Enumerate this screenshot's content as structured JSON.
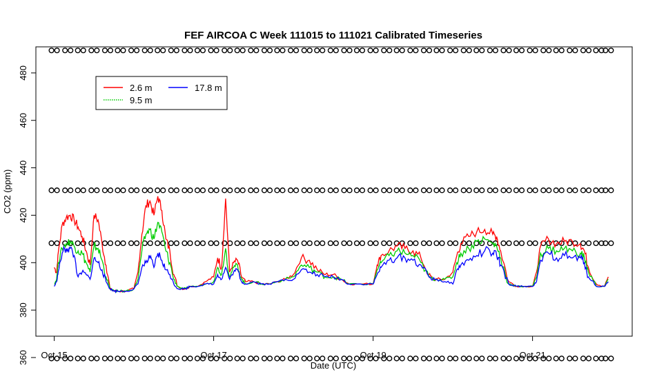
{
  "chart_data": {
    "type": "line",
    "title": "FEF AIRCOA C  Week 111015 to 111021  Calibrated Timeseries",
    "xlabel": "Date (UTC)",
    "ylabel": "CO2 (ppm)",
    "x_ticks": [
      "Oct 15",
      "Oct 17",
      "Oct 19",
      "Oct 21"
    ],
    "x_tick_days": [
      15,
      17,
      19,
      21
    ],
    "y_ticks": [
      360,
      380,
      400,
      420,
      440,
      460,
      480
    ],
    "xlim": [
      14.77,
      22.25
    ],
    "ylim": [
      369,
      491
    ],
    "grid": false,
    "legend_position": "top-left",
    "series": [
      {
        "name": "2.6 m",
        "color": "#ff0000",
        "x": [
          15.0,
          15.03,
          15.05,
          15.1,
          15.15,
          15.2,
          15.25,
          15.3,
          15.35,
          15.4,
          15.45,
          15.5,
          15.55,
          15.6,
          15.65,
          15.7,
          15.75,
          15.8,
          15.9,
          16.0,
          16.05,
          16.1,
          16.15,
          16.2,
          16.25,
          16.3,
          16.35,
          16.4,
          16.45,
          16.5,
          16.55,
          16.6,
          16.65,
          16.7,
          16.8,
          16.9,
          17.0,
          17.05,
          17.1,
          17.15,
          17.2,
          17.25,
          17.3,
          17.35,
          17.4,
          17.5,
          17.6,
          17.7,
          17.8,
          17.9,
          18.0,
          18.1,
          18.2,
          18.3,
          18.4,
          18.5,
          18.6,
          18.7,
          18.8,
          19.0,
          19.05,
          19.1,
          19.2,
          19.3,
          19.4,
          19.5,
          19.6,
          19.7,
          19.75,
          19.8,
          19.9,
          20.0,
          20.05,
          20.1,
          20.2,
          20.3,
          20.4,
          20.5,
          20.55,
          20.6,
          20.7,
          20.8,
          20.9,
          21.0,
          21.05,
          21.1,
          21.2,
          21.3,
          21.4,
          21.5,
          21.6,
          21.65,
          21.7,
          21.8,
          21.9,
          21.95
        ],
        "y": [
          398,
          396,
          404,
          416,
          419,
          420,
          418,
          415,
          411,
          405,
          399,
          420,
          418,
          408,
          399,
          389,
          388,
          388,
          388,
          389,
          396,
          412,
          424,
          426,
          420,
          428,
          422,
          410,
          405,
          395,
          390,
          389,
          389,
          390,
          390,
          392,
          394,
          402,
          398,
          427,
          396,
          400,
          401,
          394,
          392,
          392,
          391,
          391,
          392,
          393,
          395,
          402,
          401,
          397,
          395,
          395,
          393,
          391,
          391,
          391,
          399,
          403,
          405,
          407,
          406,
          405,
          402,
          395,
          393,
          393,
          393,
          396,
          403,
          408,
          411,
          413,
          414,
          412,
          411,
          405,
          392,
          390,
          390,
          390,
          396,
          407,
          410,
          408,
          409,
          409,
          408,
          405,
          398,
          391,
          390,
          394
        ]
      },
      {
        "name": "9.5 m",
        "color": "#00cc00",
        "x": [
          15.0,
          15.03,
          15.05,
          15.1,
          15.15,
          15.2,
          15.25,
          15.3,
          15.35,
          15.4,
          15.45,
          15.5,
          15.55,
          15.6,
          15.65,
          15.7,
          15.75,
          15.8,
          15.9,
          16.0,
          16.05,
          16.1,
          16.15,
          16.2,
          16.25,
          16.3,
          16.35,
          16.4,
          16.45,
          16.5,
          16.55,
          16.6,
          16.65,
          16.7,
          16.8,
          16.9,
          17.0,
          17.05,
          17.1,
          17.15,
          17.2,
          17.25,
          17.3,
          17.35,
          17.4,
          17.5,
          17.6,
          17.7,
          17.8,
          17.9,
          18.0,
          18.1,
          18.2,
          18.3,
          18.4,
          18.5,
          18.6,
          18.7,
          18.8,
          19.0,
          19.05,
          19.1,
          19.2,
          19.3,
          19.4,
          19.5,
          19.6,
          19.7,
          19.75,
          19.8,
          19.9,
          20.0,
          20.05,
          20.1,
          20.2,
          20.3,
          20.4,
          20.5,
          20.55,
          20.6,
          20.7,
          20.8,
          20.9,
          21.0,
          21.05,
          21.1,
          21.2,
          21.3,
          21.4,
          21.5,
          21.6,
          21.65,
          21.7,
          21.8,
          21.9,
          21.95
        ],
        "y": [
          391,
          393,
          400,
          406,
          408,
          409,
          407,
          405,
          404,
          400,
          396,
          407,
          406,
          401,
          394,
          389,
          388,
          388,
          388,
          389,
          393,
          405,
          412,
          414,
          410,
          417,
          413,
          405,
          400,
          393,
          390,
          389,
          389,
          390,
          390,
          391,
          392,
          398,
          395,
          406,
          394,
          398,
          399,
          393,
          391,
          392,
          391,
          391,
          392,
          393,
          394,
          399,
          398,
          396,
          394,
          394,
          393,
          391,
          391,
          391,
          397,
          400,
          403,
          405,
          404,
          403,
          400,
          394,
          393,
          393,
          393,
          394,
          400,
          404,
          406,
          409,
          410,
          408,
          407,
          402,
          391,
          390,
          390,
          390,
          394,
          404,
          406,
          405,
          406,
          405,
          404,
          402,
          396,
          390,
          390,
          393
        ]
      },
      {
        "name": "17.8 m",
        "color": "#0000ff",
        "x": [
          15.0,
          15.03,
          15.05,
          15.1,
          15.15,
          15.2,
          15.25,
          15.3,
          15.35,
          15.4,
          15.45,
          15.5,
          15.55,
          15.6,
          15.65,
          15.7,
          15.75,
          15.8,
          15.9,
          16.0,
          16.05,
          16.1,
          16.15,
          16.2,
          16.25,
          16.3,
          16.35,
          16.4,
          16.45,
          16.5,
          16.55,
          16.6,
          16.65,
          16.7,
          16.8,
          16.9,
          17.0,
          17.05,
          17.1,
          17.15,
          17.2,
          17.25,
          17.3,
          17.35,
          17.4,
          17.5,
          17.6,
          17.7,
          17.8,
          17.9,
          18.0,
          18.1,
          18.2,
          18.3,
          18.4,
          18.5,
          18.6,
          18.7,
          18.8,
          19.0,
          19.05,
          19.1,
          19.2,
          19.3,
          19.4,
          19.5,
          19.6,
          19.7,
          19.75,
          19.8,
          19.9,
          20.0,
          20.05,
          20.1,
          20.2,
          20.3,
          20.4,
          20.5,
          20.55,
          20.6,
          20.7,
          20.8,
          20.9,
          21.0,
          21.05,
          21.1,
          21.2,
          21.3,
          21.4,
          21.5,
          21.6,
          21.65,
          21.7,
          21.8,
          21.9,
          21.95
        ],
        "y": [
          390,
          392,
          396,
          404,
          406,
          406,
          403,
          394,
          396,
          395,
          393,
          402,
          400,
          397,
          392,
          389,
          388,
          388,
          388,
          389,
          391,
          398,
          400,
          402,
          398,
          404,
          401,
          397,
          395,
          391,
          389,
          389,
          389,
          390,
          390,
          391,
          391,
          395,
          393,
          398,
          393,
          396,
          397,
          392,
          391,
          392,
          391,
          391,
          392,
          393,
          393,
          397,
          396,
          395,
          394,
          394,
          393,
          391,
          391,
          391,
          395,
          398,
          401,
          402,
          402,
          401,
          399,
          394,
          393,
          393,
          392,
          391,
          397,
          399,
          401,
          403,
          405,
          404,
          403,
          399,
          391,
          390,
          390,
          390,
          392,
          401,
          404,
          402,
          403,
          402,
          402,
          400,
          394,
          390,
          390,
          392
        ]
      },
      {
        "name": "",
        "color": "#000000",
        "marker": "o",
        "x": [
          15.0,
          15.17,
          15.33,
          15.5,
          15.67,
          15.83,
          16.0,
          16.17,
          16.33,
          16.5,
          16.67,
          16.83,
          17.0,
          17.17,
          17.33,
          17.5,
          17.67,
          17.83,
          18.0,
          18.17,
          18.33,
          18.5,
          18.67,
          18.83,
          19.0,
          19.17,
          19.33,
          19.5,
          19.67,
          19.83,
          20.0,
          20.17,
          20.33,
          20.5,
          20.67,
          20.83,
          21.0,
          21.17,
          21.33,
          21.5,
          21.67,
          21.83,
          21.95
        ],
        "y": [
          489.5,
          489.5,
          489.5,
          489.5,
          489.5,
          489.5,
          489.5,
          489.5,
          489.5,
          489.5,
          489.5,
          489.5,
          489.5,
          489.5,
          489.5,
          489.5,
          489.5,
          489.5,
          489.5,
          489.5,
          489.5,
          489.5,
          489.5,
          489.5,
          489.5,
          489.5,
          489.5,
          489.5,
          489.5,
          489.5,
          489.5,
          489.5,
          489.5,
          489.5,
          489.5,
          489.5,
          489.5,
          489.5,
          489.5,
          489.5,
          489.5,
          489.5,
          489.5
        ]
      },
      {
        "name": "",
        "color": "#000000",
        "marker": "o",
        "x": [
          15.0,
          15.17,
          15.33,
          15.5,
          15.67,
          15.83,
          16.0,
          16.17,
          16.33,
          16.5,
          16.67,
          16.83,
          17.0,
          17.17,
          17.33,
          17.5,
          17.67,
          17.83,
          18.0,
          18.17,
          18.33,
          18.5,
          18.67,
          18.83,
          19.0,
          19.17,
          19.33,
          19.5,
          19.67,
          19.83,
          20.0,
          20.17,
          20.33,
          20.5,
          20.67,
          20.83,
          21.0,
          21.17,
          21.33,
          21.5,
          21.67,
          21.83,
          21.95
        ],
        "y": [
          430.5,
          430.5,
          430.5,
          430.5,
          430.5,
          430.5,
          430.5,
          430.5,
          430.5,
          430.5,
          430.5,
          430.5,
          430.5,
          430.5,
          430.5,
          430.5,
          430.5,
          430.5,
          430.5,
          430.5,
          430.5,
          430.5,
          430.5,
          430.5,
          430.5,
          430.5,
          430.5,
          430.5,
          430.5,
          430.5,
          430.5,
          430.5,
          430.5,
          430.5,
          430.5,
          430.5,
          430.5,
          430.5,
          430.5,
          430.5,
          430.5,
          430.5,
          430.5
        ]
      },
      {
        "name": "",
        "color": "#000000",
        "marker": "o",
        "x": [
          15.0,
          15.17,
          15.33,
          15.5,
          15.67,
          15.83,
          16.0,
          16.17,
          16.33,
          16.5,
          16.67,
          16.83,
          17.0,
          17.17,
          17.33,
          17.5,
          17.67,
          17.83,
          18.0,
          18.17,
          18.33,
          18.5,
          18.67,
          18.83,
          19.0,
          19.17,
          19.33,
          19.5,
          19.67,
          19.83,
          20.0,
          20.17,
          20.33,
          20.5,
          20.67,
          20.83,
          21.0,
          21.17,
          21.33,
          21.5,
          21.67,
          21.83,
          21.95
        ],
        "y": [
          408.2,
          408.2,
          408.2,
          408.2,
          408.2,
          408.2,
          408.2,
          408.2,
          408.2,
          408.2,
          408.2,
          408.2,
          408.2,
          408.2,
          408.2,
          408.2,
          408.2,
          408.2,
          408.2,
          408.2,
          408.2,
          408.2,
          408.2,
          408.2,
          408.2,
          408.2,
          408.2,
          408.2,
          408.2,
          408.2,
          408.2,
          408.2,
          408.2,
          408.2,
          408.2,
          408.2,
          408.2,
          408.2,
          408.2,
          408.2,
          408.2,
          408.2,
          408.2
        ]
      },
      {
        "name": "",
        "color": "#000000",
        "marker": "o",
        "x": [
          15.0,
          15.17,
          15.33,
          15.5,
          15.67,
          15.83,
          16.0,
          16.17,
          16.33,
          16.5,
          16.67,
          16.83,
          17.0,
          17.17,
          17.33,
          17.5,
          17.67,
          17.83,
          18.0,
          18.17,
          18.33,
          18.5,
          18.67,
          18.83,
          19.0,
          19.17,
          19.33,
          19.5,
          19.67,
          19.83,
          20.0,
          20.17,
          20.33,
          20.5,
          20.67,
          20.83,
          21.0,
          21.17,
          21.33,
          21.5,
          21.67,
          21.83,
          21.95
        ],
        "y": [
          359.6,
          359.6,
          359.6,
          359.6,
          359.6,
          359.6,
          359.6,
          359.6,
          359.6,
          359.6,
          359.6,
          359.6,
          359.6,
          359.6,
          359.6,
          359.6,
          359.6,
          359.6,
          359.6,
          359.6,
          359.6,
          359.6,
          359.6,
          359.6,
          359.6,
          359.6,
          359.6,
          359.6,
          359.6,
          359.6,
          359.6,
          359.6,
          359.6,
          359.6,
          359.6,
          359.6,
          359.6,
          359.6,
          359.6,
          359.6,
          359.6,
          359.6,
          359.6
        ]
      }
    ],
    "legend": [
      {
        "label": "2.6 m",
        "color": "#ff0000",
        "dash": "solid"
      },
      {
        "label": "9.5 m",
        "color": "#00cc00",
        "dash": "dotted"
      },
      {
        "label": "17.8 m",
        "color": "#0000ff",
        "dash": "solid"
      }
    ]
  }
}
